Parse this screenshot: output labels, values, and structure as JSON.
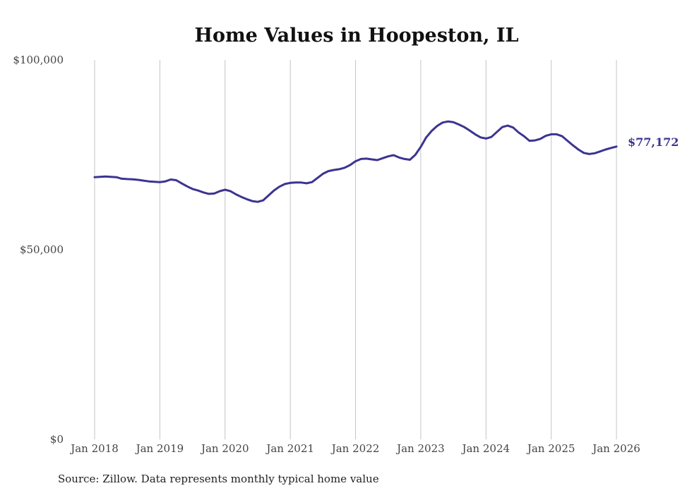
{
  "chart_data": {
    "type": "line",
    "title": "Home Values in Hoopeston, IL",
    "source": "Source: Zillow. Data represents monthly typical home value",
    "xlabel": "",
    "ylabel": "",
    "ylim": [
      0,
      100000
    ],
    "y_ticks": [
      {
        "value": 0,
        "label": "$0"
      },
      {
        "value": 50000,
        "label": "$50,000"
      },
      {
        "value": 100000,
        "label": "$100,000"
      }
    ],
    "x_start": "Jan 2018",
    "x_ticks": [
      "Jan 2018",
      "Jan 2019",
      "Jan 2020",
      "Jan 2021",
      "Jan 2022",
      "Jan 2023",
      "Jan 2024",
      "Jan 2025",
      "Jan 2026"
    ],
    "grid": "vertical",
    "line_color": "#3b3491",
    "end_label": "$77,172",
    "series": [
      {
        "name": "Typical home value",
        "frequency": "monthly",
        "values": [
          69100,
          69200,
          69300,
          69200,
          69100,
          68700,
          68600,
          68550,
          68400,
          68200,
          68000,
          67900,
          67800,
          68000,
          68500,
          68300,
          67500,
          66700,
          66000,
          65600,
          65100,
          64700,
          64800,
          65400,
          65800,
          65400,
          64600,
          63900,
          63300,
          62800,
          62600,
          63000,
          64300,
          65600,
          66600,
          67300,
          67600,
          67700,
          67700,
          67500,
          67800,
          68900,
          70000,
          70700,
          71000,
          71200,
          71600,
          72300,
          73300,
          73900,
          74000,
          73800,
          73600,
          74100,
          74600,
          74900,
          74300,
          73900,
          73700,
          75000,
          77100,
          79600,
          81300,
          82600,
          83500,
          83800,
          83600,
          83000,
          82300,
          81400,
          80400,
          79600,
          79300,
          79700,
          81000,
          82300,
          82700,
          82200,
          80900,
          79900,
          78700,
          78800,
          79200,
          80000,
          80400,
          80400,
          79900,
          78700,
          77500,
          76400,
          75500,
          75200,
          75400,
          75900,
          76400,
          76800,
          77172
        ]
      }
    ]
  }
}
